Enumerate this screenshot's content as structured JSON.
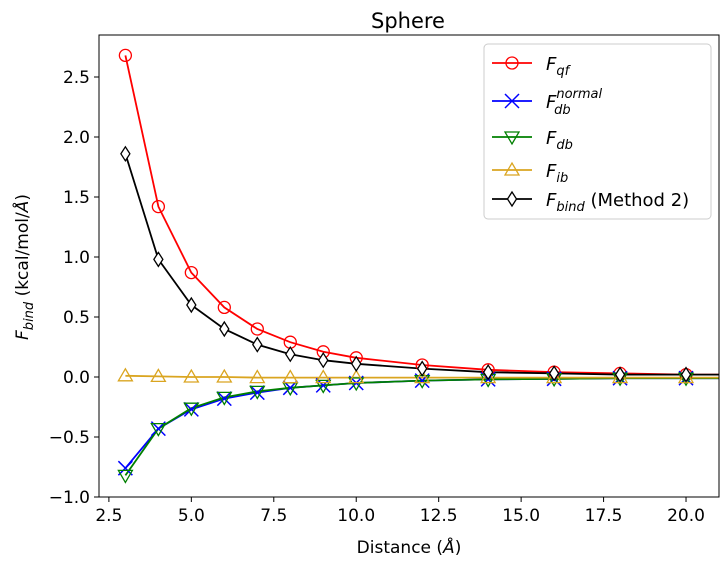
{
  "chart_data": {
    "type": "line",
    "title": "Sphere",
    "xlabel": {
      "text": "Distance (",
      "unit": "Å",
      "close": ")"
    },
    "ylabel": {
      "main": "F",
      "sub": "bind",
      "rest": " (kcal/mol/",
      "unit": "Å",
      "close": ")"
    },
    "xlim": [
      2.2,
      21.0
    ],
    "ylim": [
      -1.0,
      2.85
    ],
    "xticks": [
      2.5,
      5.0,
      7.5,
      10.0,
      12.5,
      15.0,
      17.5,
      20.0
    ],
    "xtick_labels": [
      "2.5",
      "5.0",
      "7.5",
      "10.0",
      "12.5",
      "15.0",
      "17.5",
      "20.0"
    ],
    "yticks": [
      -1.0,
      -0.5,
      0.0,
      0.5,
      1.0,
      1.5,
      2.0,
      2.5
    ],
    "ytick_labels": [
      "−1.0",
      "−0.5",
      "0.0",
      "0.5",
      "1.0",
      "1.5",
      "2.0",
      "2.5"
    ],
    "legend_position": "top-right",
    "x": [
      3,
      4,
      5,
      6,
      7,
      8,
      9,
      10,
      12,
      14,
      16,
      18,
      20
    ],
    "series": [
      {
        "name": "F_qf",
        "label_main": "F",
        "label_sub": "qf",
        "label_sup": "",
        "label_rest": "",
        "color": "#ff0000",
        "marker": "circle",
        "values": [
          2.68,
          1.42,
          0.87,
          0.58,
          0.4,
          0.29,
          0.21,
          0.16,
          0.1,
          0.06,
          0.04,
          0.03,
          0.02
        ]
      },
      {
        "name": "F_db^normal",
        "label_main": "F",
        "label_sub": "db",
        "label_sup": "normal",
        "label_rest": "",
        "color": "#0000ff",
        "marker": "x",
        "values": [
          -0.76,
          -0.43,
          -0.27,
          -0.18,
          -0.13,
          -0.09,
          -0.07,
          -0.05,
          -0.03,
          -0.02,
          -0.015,
          -0.01,
          -0.01
        ]
      },
      {
        "name": "F_db",
        "label_main": "F",
        "label_sub": "db",
        "label_sup": "",
        "label_rest": "",
        "color": "#008000",
        "marker": "triangle-down",
        "values": [
          -0.82,
          -0.43,
          -0.26,
          -0.17,
          -0.12,
          -0.09,
          -0.07,
          -0.05,
          -0.03,
          -0.02,
          -0.015,
          -0.01,
          -0.01
        ]
      },
      {
        "name": "F_ib",
        "label_main": "F",
        "label_sub": "ib",
        "label_sup": "",
        "label_rest": "",
        "color": "#daa520",
        "marker": "triangle-up",
        "values": [
          0.01,
          0.005,
          0.0,
          0.0,
          -0.005,
          -0.005,
          -0.005,
          -0.005,
          -0.005,
          -0.005,
          -0.005,
          -0.005,
          -0.005
        ]
      },
      {
        "name": "F_bind (Method 2)",
        "label_main": "F",
        "label_sub": "bind",
        "label_sup": "",
        "label_rest": " (Method 2)",
        "color": "#000000",
        "marker": "diamond",
        "values": [
          1.86,
          0.98,
          0.6,
          0.4,
          0.27,
          0.19,
          0.14,
          0.11,
          0.07,
          0.04,
          0.03,
          0.02,
          0.02
        ]
      }
    ]
  }
}
